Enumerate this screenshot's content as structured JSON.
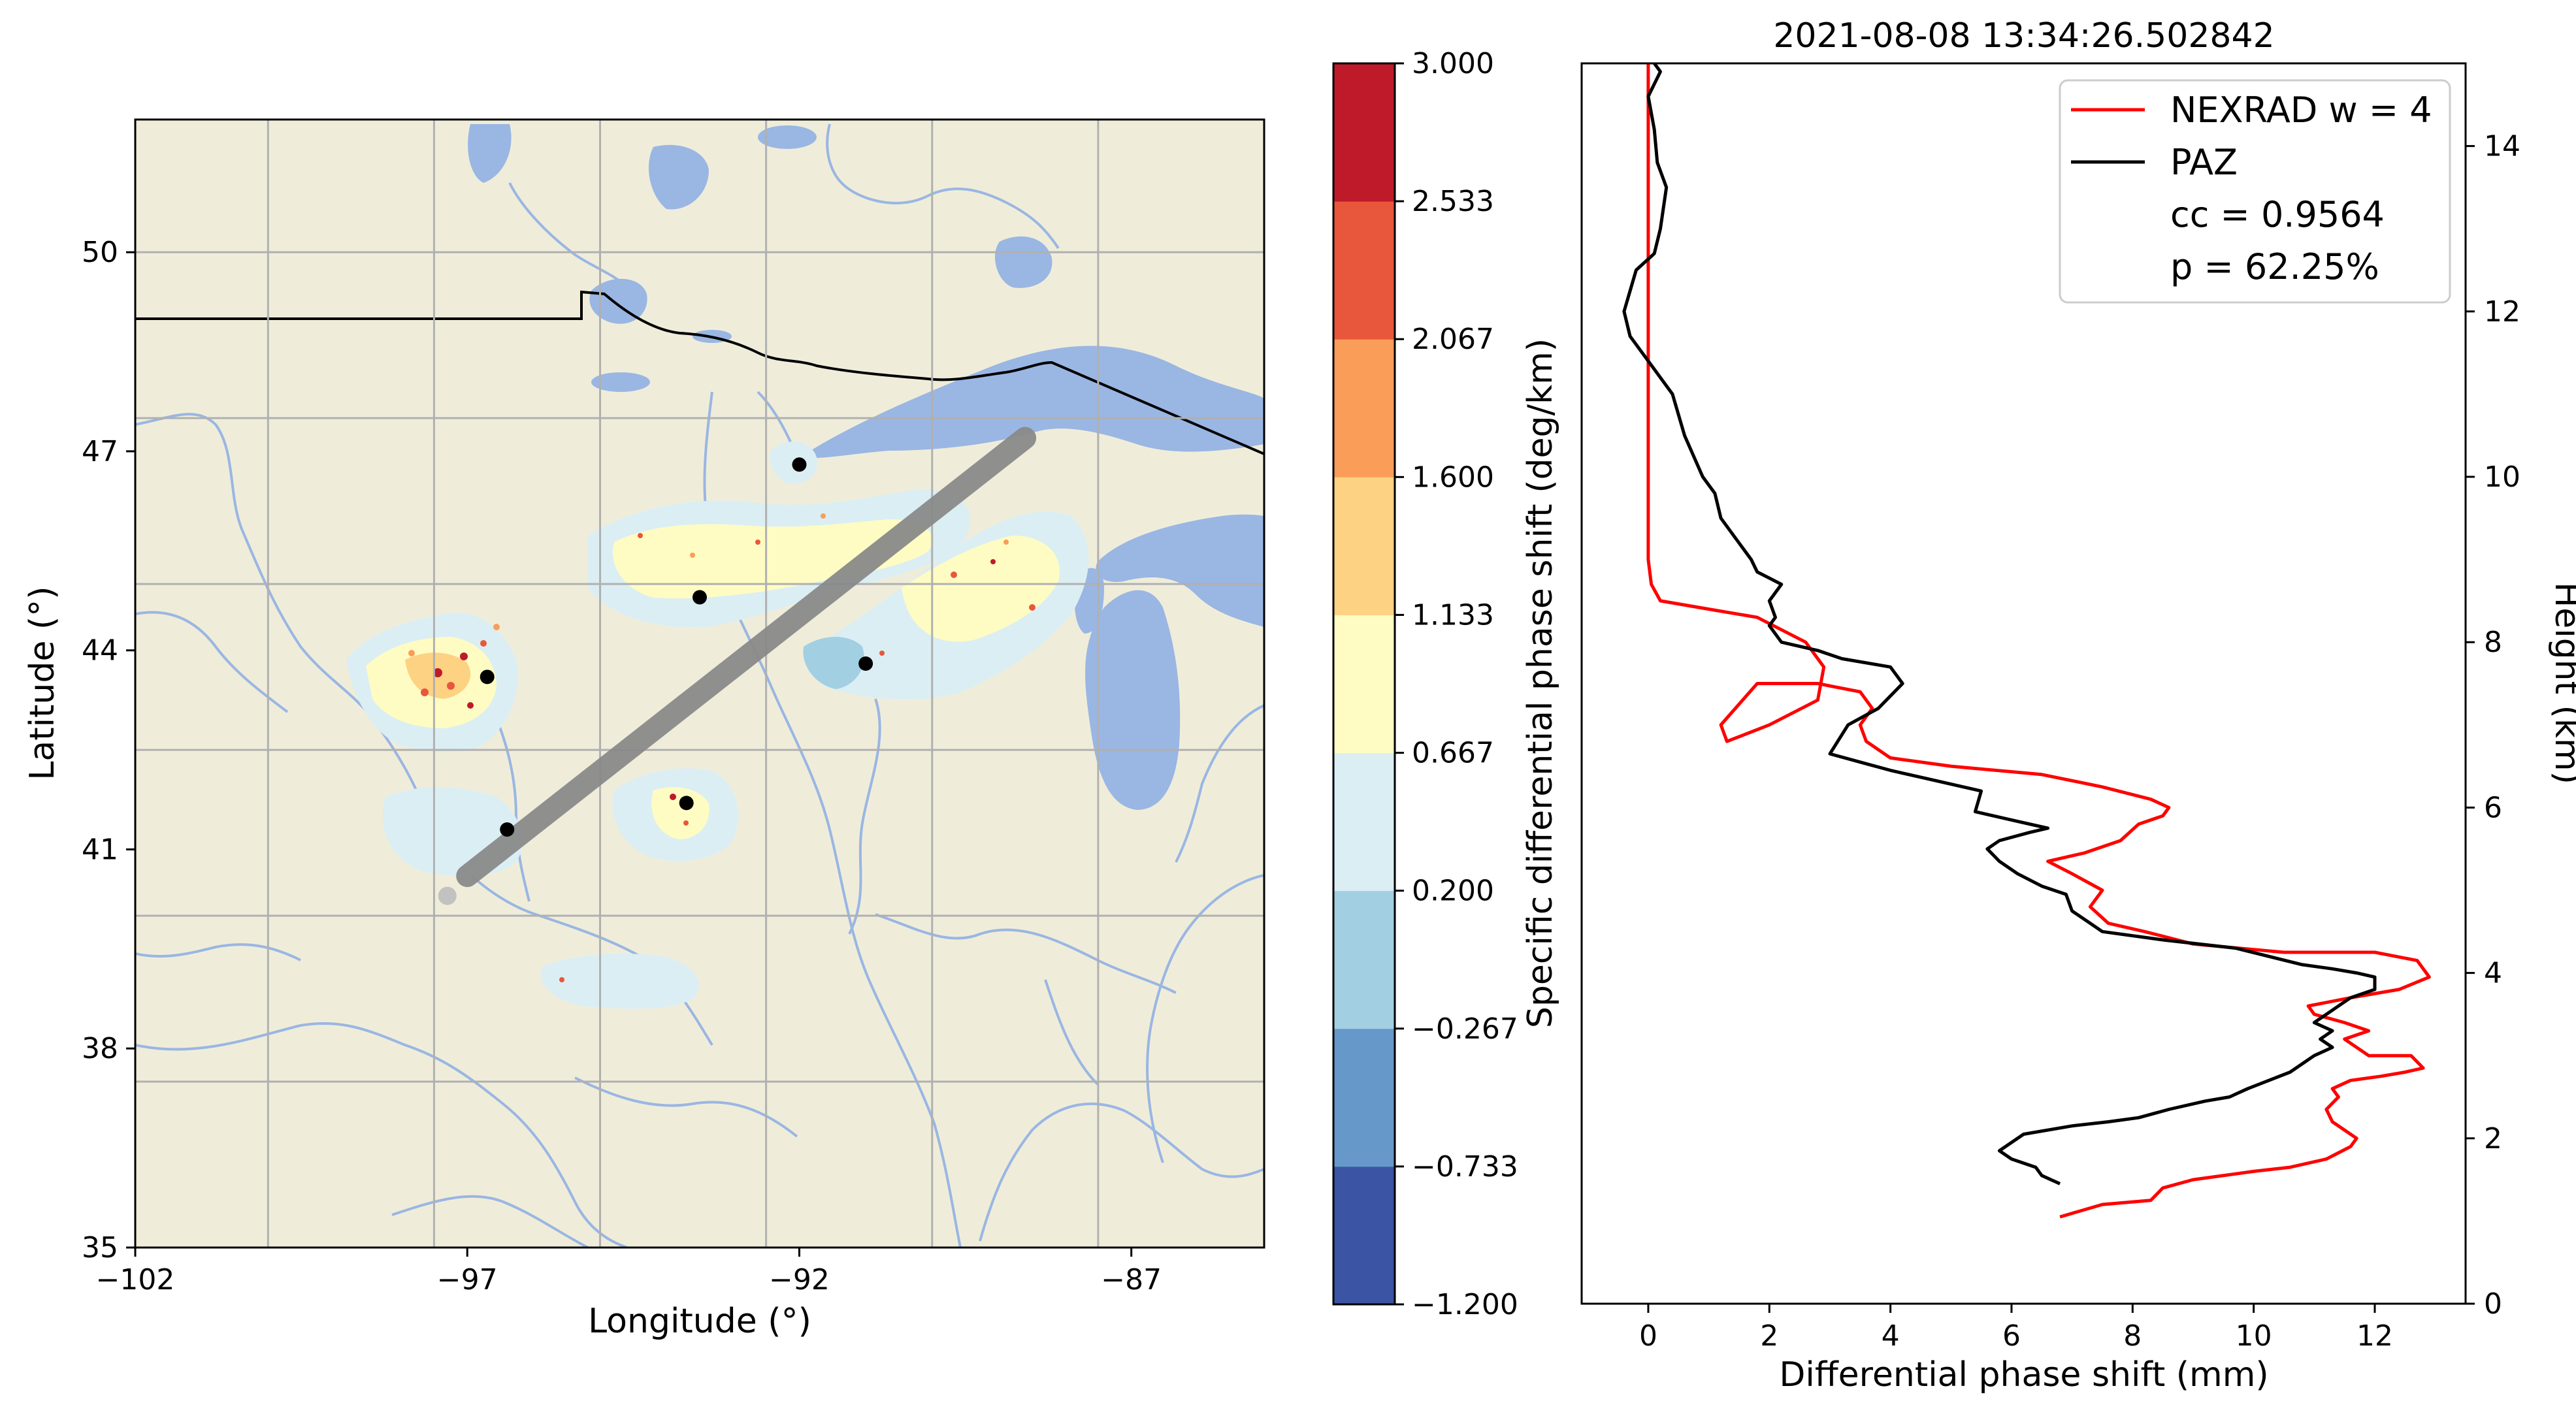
{
  "chart_data": [
    {
      "type": "map",
      "xlabel": "Longitude (°)",
      "ylabel": "Latitude (°)",
      "xlim": [
        -102,
        -85
      ],
      "ylim": [
        35,
        52
      ],
      "x_ticks": [
        "−102",
        "−97",
        "−92",
        "−87"
      ],
      "y_ticks": [
        "35",
        "38",
        "41",
        "44",
        "47",
        "50"
      ],
      "grid": true,
      "colors": {
        "land": "#efedda",
        "water": "#9ab6e3",
        "river": "#9ab6e3",
        "border": "#000000",
        "track": "#8a8a8a"
      },
      "track": {
        "start": [
          -97.0,
          40.6
        ],
        "end": [
          -88.6,
          47.2
        ],
        "faded_point": [
          -97.3,
          40.3
        ]
      },
      "stations": [
        {
          "lon": -92.0,
          "lat": 46.8
        },
        {
          "lon": -93.5,
          "lat": 44.8
        },
        {
          "lon": -96.7,
          "lat": 43.6
        },
        {
          "lon": -91.0,
          "lat": 43.8
        },
        {
          "lon": -93.7,
          "lat": 41.7
        },
        {
          "lon": -96.4,
          "lat": 41.3
        }
      ]
    },
    {
      "type": "colorbar",
      "label": "Specific differential phase shift (deg/km)",
      "ticks": [
        "−1.200",
        "−0.733",
        "−0.267",
        "0.200",
        "0.667",
        "1.133",
        "1.600",
        "2.067",
        "2.533",
        "3.000"
      ],
      "colors": [
        "#3b54a3",
        "#6699c9",
        "#a3cfe3",
        "#dbeef4",
        "#fefcc3",
        "#fed283",
        "#f99d59",
        "#e8573b",
        "#be1a2a"
      ]
    },
    {
      "type": "line",
      "title": "2021-08-08 13:34:26.502842",
      "xlabel": "Differential phase shift (mm)",
      "ylabel": "Height (km)",
      "xlim": [
        -1.1,
        13.5
      ],
      "ylim": [
        0,
        15
      ],
      "x_ticks": [
        "0",
        "2",
        "4",
        "6",
        "8",
        "10",
        "12"
      ],
      "y_ticks": [
        "0",
        "2",
        "4",
        "6",
        "8",
        "10",
        "12",
        "14"
      ],
      "legend_position": "top-right",
      "legend_text": [
        "cc = 0.9564",
        "p = 62.25%"
      ],
      "series": [
        {
          "name": "NEXRAD w = 4",
          "color": "#ff0000",
          "x": [
            6.8,
            7.5,
            8.3,
            8.5,
            9.0,
            10.0,
            10.6,
            11.2,
            11.6,
            11.7,
            11.3,
            11.2,
            11.4,
            11.3,
            11.6,
            12.1,
            12.5,
            12.8,
            12.6,
            11.9,
            11.5,
            11.9,
            11.5,
            11.0,
            10.9,
            11.6,
            12.4,
            12.9,
            12.7,
            12.0,
            10.5,
            9.0,
            8.2,
            7.6,
            7.3,
            7.5,
            7.0,
            6.6,
            7.2,
            7.8,
            8.1,
            8.5,
            8.6,
            8.3,
            7.5,
            6.5,
            5.0,
            4.0,
            3.6,
            3.5,
            3.7,
            3.5,
            2.8,
            1.8,
            1.2,
            1.3,
            2.0,
            2.8,
            2.9,
            2.6,
            1.8,
            1.0,
            0.2,
            0.05,
            0.0,
            0.0,
            0.0,
            0.0,
            0.0,
            0.0,
            0.0,
            0.0,
            0.0
          ],
          "y": [
            1.05,
            1.2,
            1.25,
            1.4,
            1.5,
            1.6,
            1.65,
            1.75,
            1.9,
            2.0,
            2.2,
            2.35,
            2.5,
            2.6,
            2.7,
            2.75,
            2.8,
            2.85,
            3.0,
            3.0,
            3.2,
            3.3,
            3.4,
            3.5,
            3.6,
            3.7,
            3.8,
            3.95,
            4.15,
            4.25,
            4.25,
            4.35,
            4.5,
            4.6,
            4.8,
            5.0,
            5.2,
            5.35,
            5.45,
            5.6,
            5.8,
            5.9,
            6.0,
            6.1,
            6.25,
            6.4,
            6.5,
            6.6,
            6.8,
            7.0,
            7.2,
            7.4,
            7.5,
            7.5,
            7.0,
            6.8,
            7.0,
            7.3,
            7.7,
            8.0,
            8.3,
            8.4,
            8.5,
            8.7,
            9.0,
            9.5,
            10.0,
            11.0,
            12.0,
            13.0,
            14.0,
            14.7,
            15.0
          ]
        },
        {
          "name": "PAZ",
          "color": "#000000",
          "x": [
            6.8,
            6.5,
            6.4,
            6.0,
            5.8,
            6.2,
            7.0,
            7.6,
            8.1,
            8.6,
            9.2,
            9.6,
            9.9,
            10.6,
            11.0,
            11.3,
            11.1,
            11.3,
            11.0,
            11.2,
            11.4,
            11.6,
            12.0,
            12.0,
            11.7,
            11.3,
            10.8,
            9.7,
            8.5,
            7.5,
            7.3,
            7.0,
            6.9,
            6.5,
            6.1,
            5.8,
            5.6,
            5.8,
            6.3,
            6.6,
            6.0,
            5.4,
            5.5,
            4.6,
            4.0,
            3.5,
            3.0,
            3.3,
            3.8,
            4.2,
            4.0,
            3.2,
            2.8,
            2.2,
            2.0,
            2.1,
            2.0,
            2.2,
            1.8,
            1.7,
            1.5,
            1.2,
            1.1,
            0.9,
            0.6,
            0.4,
            0.1,
            -0.3,
            -0.4,
            -0.2,
            0.1,
            0.2,
            0.3,
            0.15,
            0.1,
            0.0,
            0.2,
            0.1
          ],
          "y": [
            1.45,
            1.55,
            1.65,
            1.75,
            1.85,
            2.05,
            2.15,
            2.2,
            2.25,
            2.35,
            2.45,
            2.5,
            2.6,
            2.8,
            3.0,
            3.1,
            3.2,
            3.3,
            3.4,
            3.5,
            3.6,
            3.7,
            3.8,
            3.95,
            4.0,
            4.05,
            4.1,
            4.3,
            4.4,
            4.5,
            4.6,
            4.75,
            4.95,
            5.05,
            5.2,
            5.35,
            5.5,
            5.6,
            5.7,
            5.75,
            5.85,
            5.95,
            6.2,
            6.35,
            6.45,
            6.55,
            6.65,
            7.0,
            7.2,
            7.5,
            7.7,
            7.8,
            7.9,
            8.0,
            8.2,
            8.3,
            8.5,
            8.7,
            8.85,
            9.0,
            9.2,
            9.5,
            9.8,
            10.0,
            10.5,
            11.0,
            11.3,
            11.7,
            12.0,
            12.5,
            12.7,
            13.0,
            13.5,
            13.8,
            14.2,
            14.6,
            14.9,
            15.0
          ]
        }
      ]
    }
  ]
}
